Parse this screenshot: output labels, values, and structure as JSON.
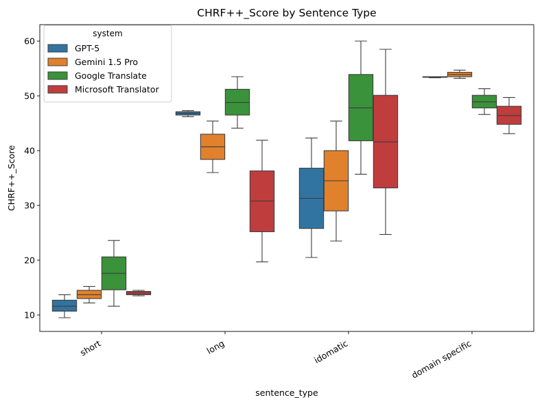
{
  "chart_data": {
    "type": "box",
    "title": "CHRF++_Score by Sentence Type",
    "xlabel": "sentence_type",
    "ylabel": "CHRF++_Score",
    "ylim": [
      7,
      63
    ],
    "yticks": [
      10,
      20,
      30,
      40,
      50,
      60
    ],
    "categories": [
      "short",
      "long",
      "idomatic",
      "domain specific"
    ],
    "legend": {
      "title": "system",
      "position": "top-left"
    },
    "series": [
      {
        "name": "GPT-5",
        "color": "#3274a1",
        "boxes": [
          {
            "min": 9.5,
            "q1": 10.7,
            "median": 11.6,
            "q3": 12.7,
            "max": 13.7
          },
          {
            "min": 46.2,
            "q1": 46.5,
            "median": 46.8,
            "q3": 47.1,
            "max": 47.3
          },
          {
            "min": 20.5,
            "q1": 25.8,
            "median": 31.3,
            "q3": 36.8,
            "max": 42.3
          },
          {
            "min": 53.3,
            "q1": 53.4,
            "median": 53.4,
            "q3": 53.5,
            "max": 53.5
          }
        ]
      },
      {
        "name": "Gemini 1.5 Pro",
        "color": "#e1812c",
        "boxes": [
          {
            "min": 12.2,
            "q1": 13.0,
            "median": 13.7,
            "q3": 14.5,
            "max": 15.2
          },
          {
            "min": 36.0,
            "q1": 38.4,
            "median": 40.7,
            "q3": 43.0,
            "max": 45.4
          },
          {
            "min": 23.5,
            "q1": 29.0,
            "median": 34.5,
            "q3": 40.0,
            "max": 45.4
          },
          {
            "min": 53.2,
            "q1": 53.5,
            "median": 53.9,
            "q3": 54.3,
            "max": 54.7
          }
        ]
      },
      {
        "name": "Google Translate",
        "color": "#3a923a",
        "boxes": [
          {
            "min": 11.6,
            "q1": 14.6,
            "median": 17.6,
            "q3": 20.6,
            "max": 23.6
          },
          {
            "min": 44.1,
            "q1": 46.5,
            "median": 48.8,
            "q3": 51.2,
            "max": 53.5
          },
          {
            "min": 35.7,
            "q1": 41.8,
            "median": 47.8,
            "q3": 53.9,
            "max": 60.0
          },
          {
            "min": 46.6,
            "q1": 47.8,
            "median": 48.9,
            "q3": 50.1,
            "max": 51.3
          }
        ]
      },
      {
        "name": "Microsoft Translator",
        "color": "#c03d3e",
        "boxes": [
          {
            "min": 13.5,
            "q1": 13.7,
            "median": 14.0,
            "q3": 14.3,
            "max": 14.5
          },
          {
            "min": 19.7,
            "q1": 25.2,
            "median": 30.8,
            "q3": 36.3,
            "max": 41.9
          },
          {
            "min": 24.7,
            "q1": 33.2,
            "median": 41.6,
            "q3": 50.1,
            "max": 58.5
          },
          {
            "min": 43.1,
            "q1": 44.8,
            "median": 46.4,
            "q3": 48.1,
            "max": 49.7
          }
        ]
      }
    ]
  }
}
